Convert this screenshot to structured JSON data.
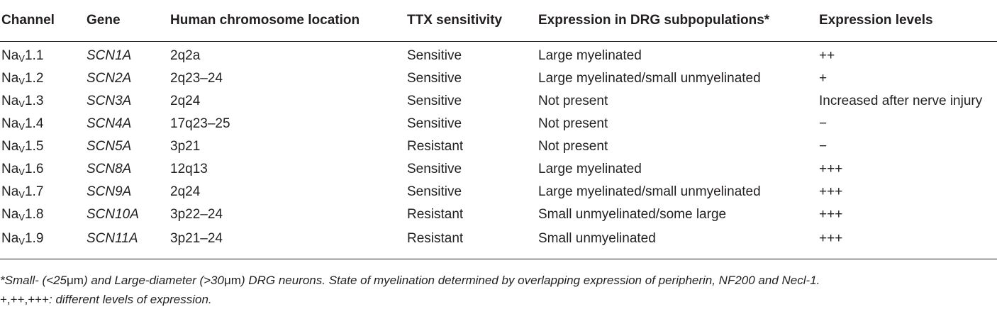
{
  "table": {
    "headers": [
      "Channel",
      "Gene",
      "Human chromosome location",
      "TTX sensitivity",
      "Expression in DRG subpopulations*",
      "Expression levels"
    ],
    "rows": [
      {
        "channel_prefix": "Na",
        "channel_sub": "V",
        "channel_num": "1.1",
        "gene": "SCN1A",
        "location": "2q2a",
        "ttx": "Sensitive",
        "drg": "Large myelinated",
        "levels": "++"
      },
      {
        "channel_prefix": "Na",
        "channel_sub": "V",
        "channel_num": "1.2",
        "gene": "SCN2A",
        "location": "2q23–24",
        "ttx": "Sensitive",
        "drg": "Large myelinated/small unmyelinated",
        "levels": "+"
      },
      {
        "channel_prefix": "Na",
        "channel_sub": "V",
        "channel_num": "1.3",
        "gene": "SCN3A",
        "location": "2q24",
        "ttx": "Sensitive",
        "drg": "Not present",
        "levels": "Increased after nerve injury"
      },
      {
        "channel_prefix": "Na",
        "channel_sub": "V",
        "channel_num": "1.4",
        "gene": "SCN4A",
        "location": "17q23–25",
        "ttx": "Sensitive",
        "drg": "Not present",
        "levels": "−"
      },
      {
        "channel_prefix": "Na",
        "channel_sub": "V",
        "channel_num": "1.5",
        "gene": "SCN5A",
        "location": "3p21",
        "ttx": "Resistant",
        "drg": "Not present",
        "levels": "−"
      },
      {
        "channel_prefix": "Na",
        "channel_sub": "V",
        "channel_num": "1.6",
        "gene": "SCN8A",
        "location": "12q13",
        "ttx": "Sensitive",
        "drg": "Large myelinated",
        "levels": "+++"
      },
      {
        "channel_prefix": "Na",
        "channel_sub": "V",
        "channel_num": "1.7",
        "gene": "SCN9A",
        "location": "2q24",
        "ttx": "Sensitive",
        "drg": "Large myelinated/small unmyelinated",
        "levels": "+++"
      },
      {
        "channel_prefix": "Na",
        "channel_sub": "V",
        "channel_num": "1.8",
        "gene": "SCN10A",
        "location": "3p22–24",
        "ttx": "Resistant",
        "drg": "Small unmyelinated/some large",
        "levels": "+++"
      },
      {
        "channel_prefix": "Na",
        "channel_sub": "V",
        "channel_num": "1.9",
        "gene": "SCN11A",
        "location": "3p21–24",
        "ttx": "Resistant",
        "drg": "Small unmyelinated",
        "levels": "+++"
      }
    ]
  },
  "footnotes": {
    "line1_a": "*Small- (<25",
    "line1_unit1": "μm",
    "line1_b": ") and Large-diameter (>30",
    "line1_unit2": "μm",
    "line1_c": ") DRG neurons. State of myelination determined by overlapping expression of peripherin, NF200 and Necl-1.",
    "line2_symbols": "+,++,+++",
    "line2_text": ": different levels of expression."
  }
}
